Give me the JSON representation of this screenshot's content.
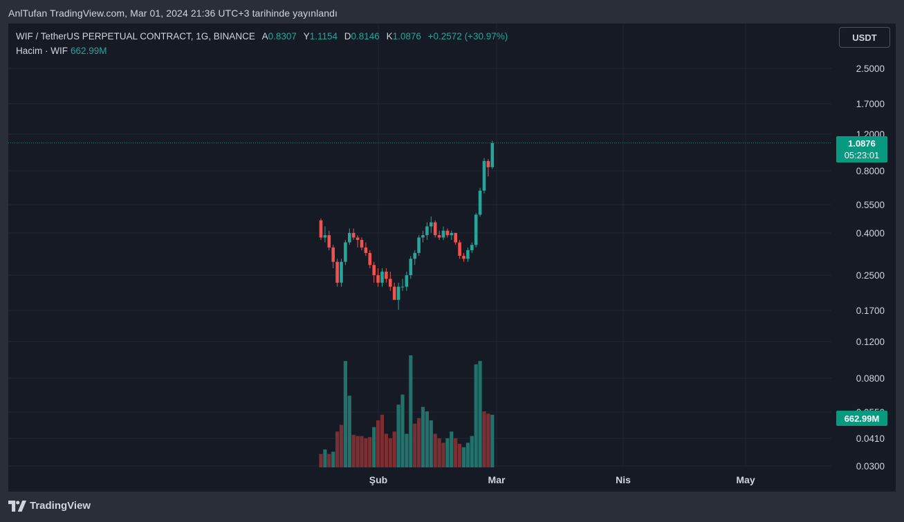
{
  "header": {
    "published": "AnlTufan TradingView.com, Mar 01, 2024 21:36 UTC+3 tarihinde yayınlandı"
  },
  "legend": {
    "symbol": "WIF / TetherUS PERPETUAL CONTRACT, 1G, BINANCE",
    "open_label": "A",
    "open": "0.8307",
    "high_label": "Y",
    "high": "1.1154",
    "low_label": "D",
    "low": "0.8146",
    "close_label": "K",
    "close": "1.0876",
    "change": "+0.2572 (+30.97%)",
    "volume_label": "Hacim · WIF",
    "volume": "662.99M"
  },
  "toolbar": {
    "currency": "USDT"
  },
  "price_badge": {
    "price": "1.0876",
    "countdown": "05:23:01"
  },
  "volume_badge": "662.99M",
  "footer": {
    "brand": "TradingView"
  },
  "colors": {
    "up": "#26a69a",
    "down": "#ef5350",
    "background": "#161a25",
    "frame": "#2a2e39"
  },
  "chart_data": {
    "type": "candlestick",
    "scale": "log",
    "y_ticks": [
      "2.5000",
      "1.7000",
      "1.2000",
      "0.8000",
      "0.5500",
      "0.4000",
      "0.2500",
      "0.1700",
      "0.1200",
      "0.0800",
      "0.0550",
      "0.0410",
      "0.0300"
    ],
    "x_ticks": [
      "Şub",
      "Mar",
      "Nis",
      "May"
    ],
    "last_price": 1.0876,
    "start_date": "2024-01-13",
    "candles": [
      {
        "o": 0.46,
        "h": 0.47,
        "l": 0.37,
        "c": 0.38
      },
      {
        "o": 0.38,
        "h": 0.43,
        "l": 0.36,
        "c": 0.39
      },
      {
        "o": 0.39,
        "h": 0.41,
        "l": 0.33,
        "c": 0.34
      },
      {
        "o": 0.34,
        "h": 0.35,
        "l": 0.27,
        "c": 0.29
      },
      {
        "o": 0.29,
        "h": 0.3,
        "l": 0.22,
        "c": 0.23
      },
      {
        "o": 0.23,
        "h": 0.3,
        "l": 0.22,
        "c": 0.29
      },
      {
        "o": 0.29,
        "h": 0.37,
        "l": 0.28,
        "c": 0.36
      },
      {
        "o": 0.36,
        "h": 0.42,
        "l": 0.35,
        "c": 0.4
      },
      {
        "o": 0.4,
        "h": 0.42,
        "l": 0.37,
        "c": 0.38
      },
      {
        "o": 0.38,
        "h": 0.39,
        "l": 0.34,
        "c": 0.37
      },
      {
        "o": 0.37,
        "h": 0.38,
        "l": 0.33,
        "c": 0.34
      },
      {
        "o": 0.34,
        "h": 0.36,
        "l": 0.31,
        "c": 0.32
      },
      {
        "o": 0.32,
        "h": 0.33,
        "l": 0.27,
        "c": 0.28
      },
      {
        "o": 0.28,
        "h": 0.29,
        "l": 0.23,
        "c": 0.25
      },
      {
        "o": 0.25,
        "h": 0.27,
        "l": 0.22,
        "c": 0.23
      },
      {
        "o": 0.23,
        "h": 0.27,
        "l": 0.22,
        "c": 0.26
      },
      {
        "o": 0.26,
        "h": 0.27,
        "l": 0.23,
        "c": 0.24
      },
      {
        "o": 0.24,
        "h": 0.26,
        "l": 0.21,
        "c": 0.22
      },
      {
        "o": 0.22,
        "h": 0.23,
        "l": 0.19,
        "c": 0.19
      },
      {
        "o": 0.19,
        "h": 0.23,
        "l": 0.17,
        "c": 0.22
      },
      {
        "o": 0.22,
        "h": 0.24,
        "l": 0.21,
        "c": 0.22
      },
      {
        "o": 0.22,
        "h": 0.26,
        "l": 0.21,
        "c": 0.25
      },
      {
        "o": 0.25,
        "h": 0.31,
        "l": 0.24,
        "c": 0.3
      },
      {
        "o": 0.3,
        "h": 0.33,
        "l": 0.28,
        "c": 0.32
      },
      {
        "o": 0.32,
        "h": 0.39,
        "l": 0.31,
        "c": 0.38
      },
      {
        "o": 0.38,
        "h": 0.41,
        "l": 0.36,
        "c": 0.39
      },
      {
        "o": 0.39,
        "h": 0.45,
        "l": 0.37,
        "c": 0.43
      },
      {
        "o": 0.43,
        "h": 0.48,
        "l": 0.4,
        "c": 0.45
      },
      {
        "o": 0.45,
        "h": 0.46,
        "l": 0.38,
        "c": 0.39
      },
      {
        "o": 0.39,
        "h": 0.41,
        "l": 0.37,
        "c": 0.38
      },
      {
        "o": 0.38,
        "h": 0.43,
        "l": 0.37,
        "c": 0.41
      },
      {
        "o": 0.41,
        "h": 0.42,
        "l": 0.38,
        "c": 0.39
      },
      {
        "o": 0.39,
        "h": 0.41,
        "l": 0.37,
        "c": 0.4
      },
      {
        "o": 0.4,
        "h": 0.4,
        "l": 0.35,
        "c": 0.36
      },
      {
        "o": 0.36,
        "h": 0.37,
        "l": 0.3,
        "c": 0.31
      },
      {
        "o": 0.31,
        "h": 0.32,
        "l": 0.29,
        "c": 0.3
      },
      {
        "o": 0.3,
        "h": 0.34,
        "l": 0.29,
        "c": 0.33
      },
      {
        "o": 0.33,
        "h": 0.36,
        "l": 0.32,
        "c": 0.35
      },
      {
        "o": 0.35,
        "h": 0.5,
        "l": 0.34,
        "c": 0.49
      },
      {
        "o": 0.49,
        "h": 0.66,
        "l": 0.48,
        "c": 0.64
      },
      {
        "o": 0.64,
        "h": 0.92,
        "l": 0.62,
        "c": 0.89
      },
      {
        "o": 0.89,
        "h": 0.91,
        "l": 0.75,
        "c": 0.83
      },
      {
        "o": 0.8307,
        "h": 1.1154,
        "l": 0.8146,
        "c": 1.0876
      }
    ],
    "volume": [
      {
        "v": 0.12,
        "up": false
      },
      {
        "v": 0.16,
        "up": true
      },
      {
        "v": 0.12,
        "up": false
      },
      {
        "v": 0.14,
        "up": true
      },
      {
        "v": 0.32,
        "up": false
      },
      {
        "v": 0.38,
        "up": false
      },
      {
        "v": 0.95,
        "up": true
      },
      {
        "v": 0.64,
        "up": true
      },
      {
        "v": 0.29,
        "up": false
      },
      {
        "v": 0.28,
        "up": false
      },
      {
        "v": 0.28,
        "up": false
      },
      {
        "v": 0.26,
        "up": false
      },
      {
        "v": 0.27,
        "up": false
      },
      {
        "v": 0.36,
        "up": true
      },
      {
        "v": 0.42,
        "up": false
      },
      {
        "v": 0.47,
        "up": false
      },
      {
        "v": 0.3,
        "up": false
      },
      {
        "v": 0.26,
        "up": false
      },
      {
        "v": 0.32,
        "up": false
      },
      {
        "v": 0.56,
        "up": true
      },
      {
        "v": 0.65,
        "up": true
      },
      {
        "v": 0.3,
        "up": true
      },
      {
        "v": 1.0,
        "up": true
      },
      {
        "v": 0.39,
        "up": false
      },
      {
        "v": 0.44,
        "up": false
      },
      {
        "v": 0.54,
        "up": true
      },
      {
        "v": 0.5,
        "up": true
      },
      {
        "v": 0.42,
        "up": true
      },
      {
        "v": 0.3,
        "up": false
      },
      {
        "v": 0.26,
        "up": false
      },
      {
        "v": 0.22,
        "up": false
      },
      {
        "v": 0.26,
        "up": true
      },
      {
        "v": 0.32,
        "up": true
      },
      {
        "v": 0.26,
        "up": false
      },
      {
        "v": 0.21,
        "up": false
      },
      {
        "v": 0.18,
        "up": true
      },
      {
        "v": 0.22,
        "up": true
      },
      {
        "v": 0.28,
        "up": true
      },
      {
        "v": 0.92,
        "up": true
      },
      {
        "v": 0.95,
        "up": true
      },
      {
        "v": 0.5,
        "up": false
      },
      {
        "v": 0.48,
        "up": false
      },
      {
        "v": 0.47,
        "up": true
      }
    ]
  }
}
